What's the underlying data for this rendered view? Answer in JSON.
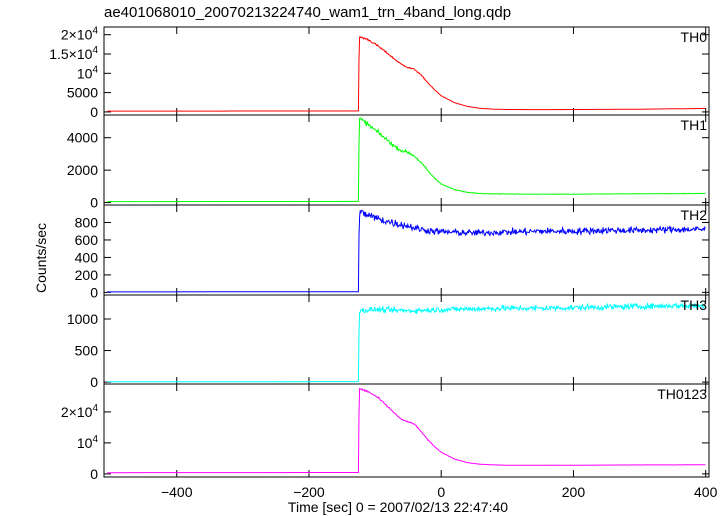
{
  "chart_data": {
    "type": "line",
    "title": "ae401068010_20070213224740_wam1_trn_4band_long.qdp",
    "xlabel": "Time [sec] 0 = 2007/02/13 22:47:40",
    "ylabel": "Counts/sec",
    "xlim": [
      -510,
      405
    ],
    "x_ticks": [
      -400,
      -200,
      0,
      200,
      400
    ],
    "x_tick_labels": [
      "−400",
      "−200",
      "0",
      "200",
      "400"
    ],
    "grid": false,
    "panels": [
      {
        "name": "TH0",
        "color": "#ff0000",
        "ylim": [
          -800,
          22000
        ],
        "y_ticks": [
          0,
          5000,
          10000,
          15000,
          20000
        ],
        "y_tick_labels": [
          {
            "pre": "0"
          },
          {
            "pre": "5000"
          },
          {
            "pre": "10",
            "sup": "4"
          },
          {
            "pre": "1.5×10",
            "sup": "4"
          },
          {
            "pre": "2×10",
            "sup": "4"
          }
        ],
        "x": [
          -505,
          -125,
          -124,
          -110,
          -95,
          -80,
          -70,
          -60,
          -50,
          -40,
          -30,
          -20,
          -10,
          0,
          20,
          40,
          60,
          80,
          100,
          150,
          200,
          250,
          300,
          350,
          400
        ],
        "y": [
          200,
          250,
          19500,
          18700,
          17000,
          15000,
          13600,
          12300,
          11500,
          11000,
          9500,
          7500,
          5700,
          4200,
          2400,
          1400,
          900,
          700,
          620,
          600,
          620,
          650,
          700,
          800,
          900
        ],
        "noise": 0.015
      },
      {
        "name": "TH1",
        "color": "#00ff00",
        "ylim": [
          -150,
          5400
        ],
        "y_ticks": [
          0,
          2000,
          4000
        ],
        "y_tick_labels": [
          {
            "pre": "0"
          },
          {
            "pre": "2000"
          },
          {
            "pre": "4000"
          }
        ],
        "x": [
          -505,
          -125,
          -124,
          -110,
          -95,
          -80,
          -70,
          -60,
          -50,
          -40,
          -30,
          -20,
          -10,
          0,
          20,
          40,
          60,
          80,
          100,
          150,
          200,
          250,
          300,
          350,
          400
        ],
        "y": [
          60,
          70,
          5200,
          4800,
          4300,
          3800,
          3450,
          3200,
          3100,
          2850,
          2450,
          1950,
          1500,
          1150,
          800,
          620,
          560,
          540,
          530,
          520,
          520,
          530,
          540,
          550,
          560
        ],
        "noise": 0.03
      },
      {
        "name": "TH2",
        "color": "#0000ff",
        "ylim": [
          -30,
          1000
        ],
        "y_ticks": [
          0,
          200,
          400,
          600,
          800
        ],
        "y_tick_labels": [
          {
            "pre": "0"
          },
          {
            "pre": "200"
          },
          {
            "pre": "400"
          },
          {
            "pre": "600"
          },
          {
            "pre": "800"
          }
        ],
        "x": [
          -505,
          -125,
          -124,
          -110,
          -90,
          -70,
          -50,
          -30,
          -10,
          10,
          50,
          100,
          150,
          200,
          250,
          300,
          350,
          400
        ],
        "y": [
          5,
          8,
          920,
          880,
          830,
          790,
          760,
          720,
          700,
          690,
          680,
          690,
          700,
          700,
          710,
          710,
          720,
          720
        ],
        "noise": 0.06
      },
      {
        "name": "TH3",
        "color": "#00ffff",
        "ylim": [
          -30,
          1380
        ],
        "y_ticks": [
          0,
          500,
          1000
        ],
        "y_tick_labels": [
          {
            "pre": "0"
          },
          {
            "pre": "500"
          },
          {
            "pre": "1000"
          }
        ],
        "x": [
          -505,
          -125,
          -124,
          -100,
          -50,
          0,
          50,
          100,
          150,
          200,
          250,
          300,
          350,
          400
        ],
        "y": [
          5,
          8,
          1130,
          1150,
          1130,
          1150,
          1160,
          1170,
          1170,
          1180,
          1190,
          1200,
          1210,
          1210
        ],
        "noise": 0.04
      },
      {
        "name": "TH0123",
        "color": "#ff00ff",
        "ylim": [
          -1000,
          29000
        ],
        "y_ticks": [
          0,
          10000,
          20000
        ],
        "y_tick_labels": [
          {
            "pre": "0"
          },
          {
            "pre": "10",
            "sup": "4"
          },
          {
            "pre": "2×10",
            "sup": "4"
          }
        ],
        "x": [
          -505,
          -125,
          -124,
          -110,
          -95,
          -80,
          -70,
          -60,
          -50,
          -40,
          -30,
          -20,
          -10,
          0,
          20,
          40,
          60,
          80,
          100,
          150,
          200,
          250,
          300,
          350,
          400
        ],
        "y": [
          400,
          450,
          27500,
          26500,
          24500,
          21500,
          19500,
          17500,
          16800,
          16000,
          13500,
          11000,
          8800,
          7000,
          4800,
          3600,
          3100,
          2900,
          2800,
          2800,
          2800,
          2850,
          2900,
          2900,
          2950
        ],
        "noise": 0.012
      }
    ]
  }
}
